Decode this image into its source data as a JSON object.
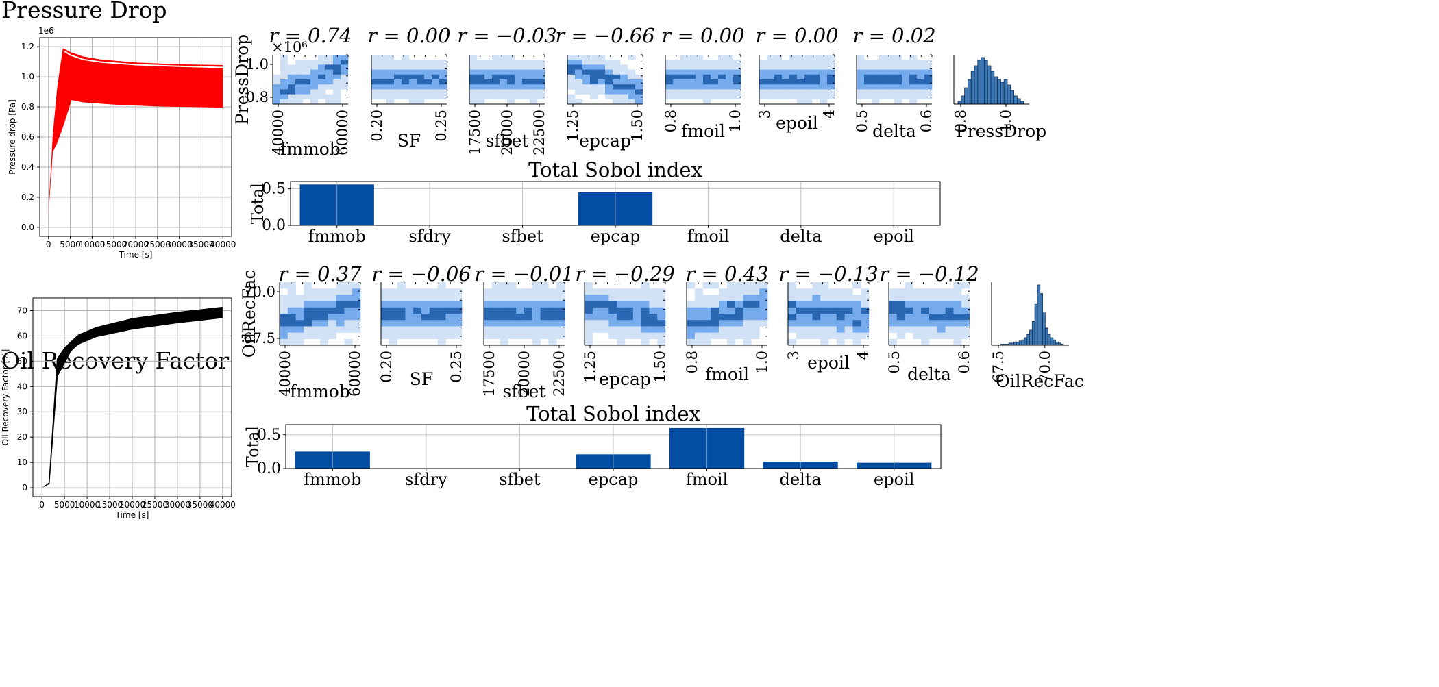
{
  "sections": [
    {
      "title": "Pressure Drop",
      "time_chart": {
        "type": "area",
        "xlabel": "Time [s]",
        "ylabel": "Pressure drop [Pa]",
        "offset_label": "1e6",
        "xlim": [
          -2000,
          42000
        ],
        "ylim": [
          -0.06,
          1.26
        ],
        "xticks": [
          0,
          5000,
          10000,
          15000,
          20000,
          25000,
          30000,
          35000,
          40000
        ],
        "yticks": [
          0.0,
          0.2,
          0.4,
          0.6,
          0.8,
          1.0,
          1.2
        ],
        "yticklabels": [
          "0.0",
          "0.2",
          "0.4",
          "0.6",
          "0.8",
          "1.0",
          "1.2"
        ],
        "fill_color": "#ff0000",
        "upper": [
          [
            0,
            0.0
          ],
          [
            200,
            0.22
          ],
          [
            1000,
            0.62
          ],
          [
            2000,
            0.93
          ],
          [
            3300,
            1.19
          ],
          [
            5000,
            1.165
          ],
          [
            8000,
            1.135
          ],
          [
            12000,
            1.115
          ],
          [
            20000,
            1.095
          ],
          [
            30000,
            1.083
          ],
          [
            40000,
            1.078
          ]
        ],
        "lower": [
          [
            0,
            0.0
          ],
          [
            200,
            0.17
          ],
          [
            1000,
            0.5
          ],
          [
            2000,
            0.56
          ],
          [
            3500,
            0.68
          ],
          [
            5300,
            0.845
          ],
          [
            8000,
            0.83
          ],
          [
            15000,
            0.815
          ],
          [
            25000,
            0.803
          ],
          [
            40000,
            0.795
          ]
        ],
        "highlight": [
          [
            3700,
            1.17
          ],
          [
            5000,
            1.145
          ],
          [
            8000,
            1.115
          ],
          [
            12000,
            1.098
          ],
          [
            20000,
            1.08
          ],
          [
            30000,
            1.07
          ],
          [
            40000,
            1.062
          ]
        ]
      },
      "corr_panels": [
        {
          "r": "r = 0.74",
          "xlabel": "fmmob",
          "xticks": [
            "40000",
            "60000"
          ],
          "trend": 0.74
        },
        {
          "r": "r = 0.00",
          "xlabel": "SF",
          "xticks": [
            "0.20",
            "0.25"
          ],
          "trend": 0.0
        },
        {
          "r": "r = −0.03",
          "xlabel": "sfbet",
          "xticks": [
            "17500",
            "20000",
            "22500"
          ],
          "trend": -0.03
        },
        {
          "r": "r = −0.66",
          "xlabel": "epcap",
          "xticks": [
            "1.25",
            "1.50"
          ],
          "trend": -0.66
        },
        {
          "r": "r = 0.00",
          "xlabel": "fmoil",
          "xticks": [
            "0.8",
            "1.0"
          ],
          "trend": 0.0
        },
        {
          "r": "r = 0.00",
          "xlabel": "epoil",
          "xticks": [
            "3",
            "4"
          ],
          "trend": 0.0
        },
        {
          "r": "r = 0.02",
          "xlabel": "delta",
          "xticks": [
            "0.5",
            "0.6"
          ],
          "trend": 0.02
        }
      ],
      "corr_ylabel": "PressDrop",
      "corr_yticks": [
        "0.8",
        "1.0"
      ],
      "corr_offset": "×10⁶",
      "marginal": {
        "xlabel": "PressDrop",
        "xticks": [
          "0.8",
          "1.0"
        ],
        "type": "histogram",
        "counts": [
          1,
          3,
          6,
          9,
          12,
          14,
          16,
          17,
          16,
          14,
          12,
          10,
          9,
          8,
          9,
          7,
          5,
          3,
          2,
          1
        ]
      },
      "sobol": {
        "type": "bar",
        "title": "Total Sobol index",
        "ylabel": "Total",
        "categories": [
          "fmmob",
          "sfdry",
          "sfbet",
          "epcap",
          "fmoil",
          "delta",
          "epoil"
        ],
        "values": [
          0.56,
          0.0,
          0.0,
          0.45,
          0.0,
          0.0,
          0.0
        ],
        "ylim": [
          0,
          0.6
        ],
        "yticks": [
          "0.0",
          "0.5"
        ],
        "bar_color": "#034ea2"
      }
    },
    {
      "title": "Oil Recovery Factor",
      "time_chart": {
        "type": "area",
        "xlabel": "Time [s]",
        "ylabel": "Oil Recovery Factor [%]",
        "offset_label": "",
        "xlim": [
          -2000,
          42000
        ],
        "ylim": [
          -3.5,
          75
        ],
        "xticks": [
          0,
          5000,
          10000,
          15000,
          20000,
          25000,
          30000,
          35000,
          40000
        ],
        "yticks": [
          0,
          10,
          20,
          30,
          40,
          50,
          60,
          70
        ],
        "yticklabels": [
          "0",
          "10",
          "20",
          "30",
          "40",
          "50",
          "60",
          "70"
        ],
        "fill_color": "#000000",
        "upper": [
          [
            0,
            0
          ],
          [
            1500,
            2
          ],
          [
            3300,
            51
          ],
          [
            5000,
            55.5
          ],
          [
            8000,
            60.5
          ],
          [
            12000,
            63.5
          ],
          [
            20000,
            67
          ],
          [
            30000,
            69.5
          ],
          [
            40000,
            71.5
          ]
        ],
        "lower": [
          [
            0,
            0
          ],
          [
            1700,
            1.5
          ],
          [
            3500,
            44
          ],
          [
            6500,
            54
          ],
          [
            8000,
            56.5
          ],
          [
            12000,
            59.5
          ],
          [
            20000,
            62.5
          ],
          [
            30000,
            65
          ],
          [
            40000,
            67
          ]
        ],
        "highlight": []
      },
      "corr_panels": [
        {
          "r": "r = 0.37",
          "xlabel": "fmmob",
          "xticks": [
            "40000",
            "60000"
          ],
          "trend": 0.37
        },
        {
          "r": "r = −0.06",
          "xlabel": "SF",
          "xticks": [
            "0.20",
            "0.25"
          ],
          "trend": -0.06
        },
        {
          "r": "r = −0.01",
          "xlabel": "sfbet",
          "xticks": [
            "17500",
            "20000",
            "22500"
          ],
          "trend": -0.01
        },
        {
          "r": "r = −0.29",
          "xlabel": "epcap",
          "xticks": [
            "1.25",
            "1.50"
          ],
          "trend": -0.29
        },
        {
          "r": "r = 0.43",
          "xlabel": "fmoil",
          "xticks": [
            "0.8",
            "1.0"
          ],
          "trend": 0.43
        },
        {
          "r": "r = −0.13",
          "xlabel": "epoil",
          "xticks": [
            "3",
            "4"
          ],
          "trend": -0.13
        },
        {
          "r": "r = −0.12",
          "xlabel": "delta",
          "xticks": [
            "0.5",
            "0.6"
          ],
          "trend": -0.12
        }
      ],
      "corr_ylabel": "OilRecFac",
      "corr_yticks": [
        "67.5",
        "70.0"
      ],
      "corr_offset": "",
      "marginal": {
        "xlabel": "OilRecFac",
        "xticks": [
          "67.5",
          "70.0"
        ],
        "type": "histogram",
        "counts": [
          0,
          0,
          1,
          1,
          1,
          2,
          2,
          3,
          3,
          4,
          5,
          7,
          10,
          14,
          22,
          38,
          56,
          48,
          30,
          16,
          10,
          7,
          5,
          3,
          2,
          1
        ]
      },
      "sobol": {
        "type": "bar",
        "title": "Total Sobol index",
        "ylabel": "Total",
        "categories": [
          "fmmob",
          "sfdry",
          "sfbet",
          "epcap",
          "fmoil",
          "delta",
          "epoil"
        ],
        "values": [
          0.25,
          0.0,
          0.0,
          0.21,
          0.6,
          0.1,
          0.085
        ],
        "ylim": [
          0,
          0.65
        ],
        "yticks": [
          "0.0",
          "0.5"
        ],
        "bar_color": "#034ea2"
      }
    }
  ],
  "colors": {
    "hist_light": "#cfe0f6",
    "hist_mid": "#6fa8ec",
    "hist_dark": "#1f5fae",
    "marginal_bar": "#3a78b8"
  }
}
